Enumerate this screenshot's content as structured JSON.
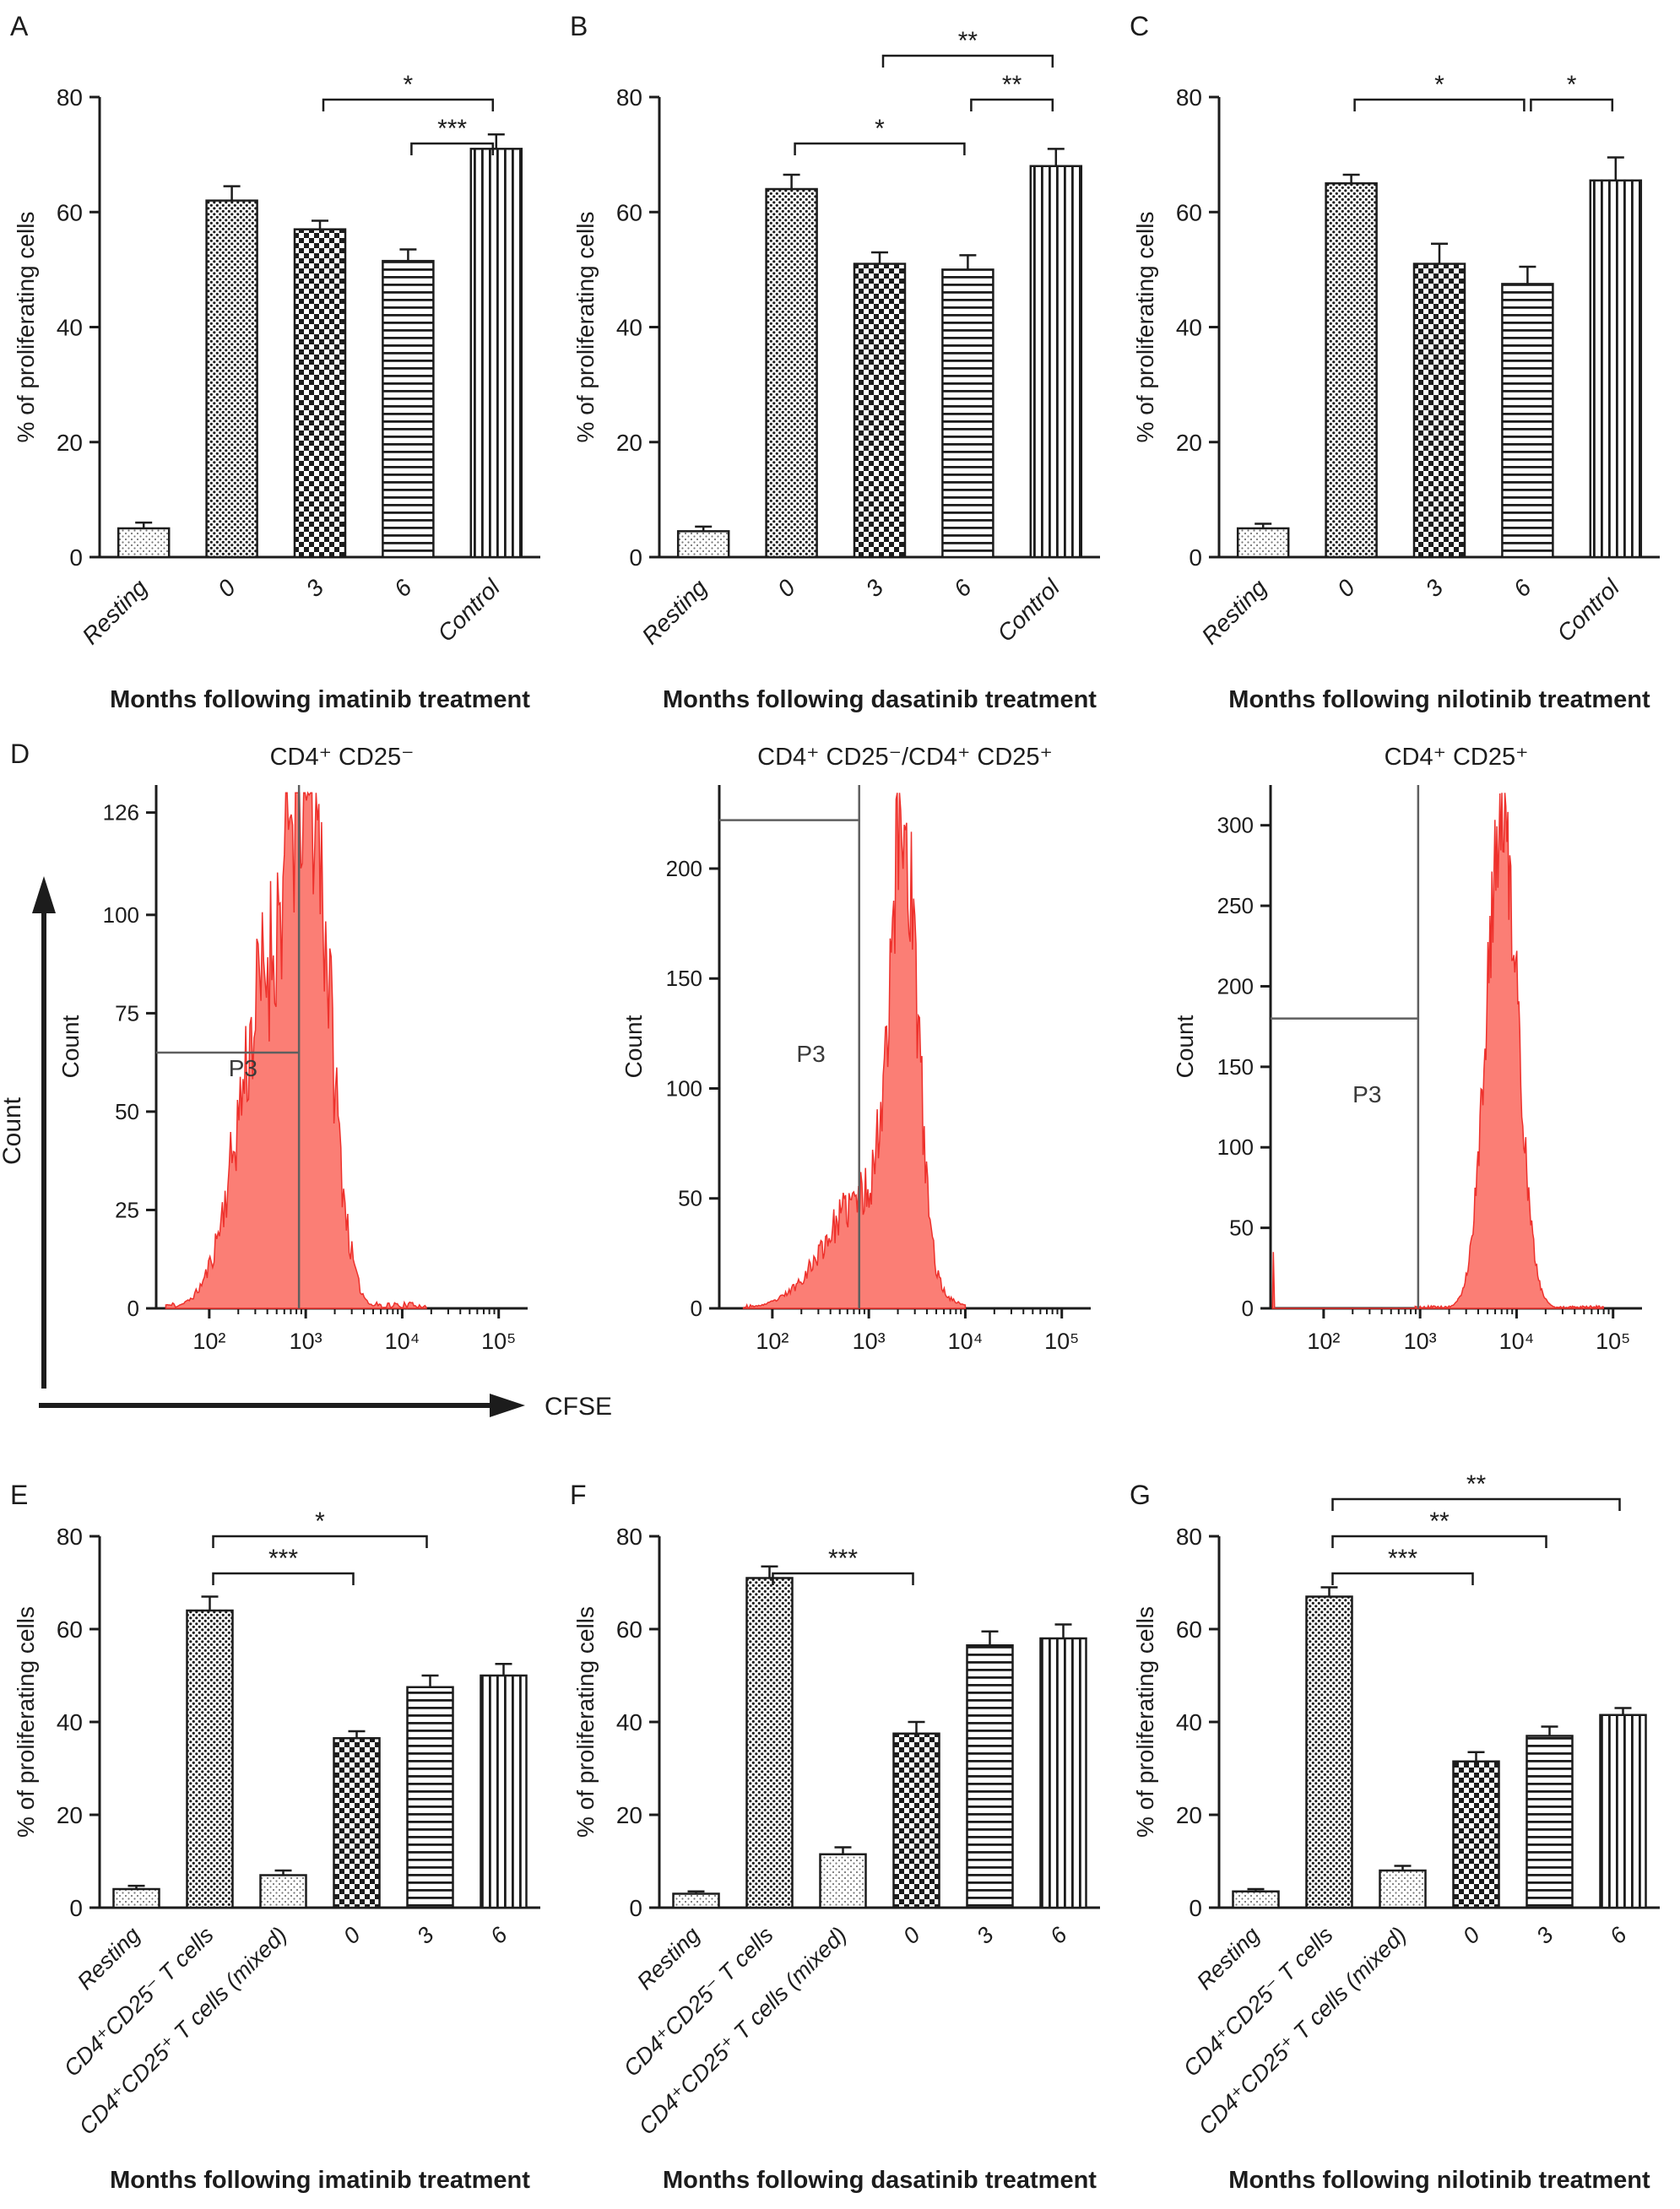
{
  "style": {
    "background": "#ffffff",
    "ink": "#1c1c1c",
    "hist_fill": "#fb7e75",
    "hist_stroke": "#ee312c",
    "gate_color": "#5f5f5f",
    "stipple_dot": "#777777"
  },
  "chart_data": {
    "row1_bar_charts": [
      {
        "type": "bar",
        "letter": "A",
        "ylabel": "% of proliferating cells",
        "xlabel": "Months following imatinib treatment",
        "ylim": [
          0,
          80
        ],
        "yticks": [
          0,
          20,
          40,
          60,
          80
        ],
        "categories": [
          "Resting",
          "0",
          "3",
          "6",
          "Control"
        ],
        "values": [
          5,
          62,
          57,
          51.5,
          71
        ],
        "errors": [
          1,
          2.5,
          1.5,
          2,
          2.5
        ],
        "patterns": [
          "stipple",
          "dots",
          "checker",
          "hlines",
          "vlines"
        ],
        "significance": [
          {
            "from": 3,
            "to": 4,
            "label": "***",
            "level": 1
          },
          {
            "from": 2,
            "to": 4,
            "label": "*",
            "level": 2
          }
        ]
      },
      {
        "type": "bar",
        "letter": "B",
        "ylabel": "% of proliferating cells",
        "xlabel": "Months following dasatinib treatment",
        "ylim": [
          0,
          80
        ],
        "yticks": [
          0,
          20,
          40,
          60,
          80
        ],
        "categories": [
          "Resting",
          "0",
          "3",
          "6",
          "Control"
        ],
        "values": [
          4.5,
          64,
          51,
          50,
          68
        ],
        "errors": [
          0.8,
          2.5,
          2,
          2.5,
          3
        ],
        "patterns": [
          "stipple",
          "dots",
          "checker",
          "hlines",
          "vlines"
        ],
        "significance": [
          {
            "from": 1,
            "to": 3,
            "label": "*",
            "level": 1
          },
          {
            "from": 3,
            "to": 4,
            "label": "**",
            "level": 2
          },
          {
            "from": 2,
            "to": 4,
            "label": "**",
            "level": 3
          }
        ]
      },
      {
        "type": "bar",
        "letter": "C",
        "ylabel": "% of proliferating cells",
        "xlabel": "Months following nilotinib treatment",
        "ylim": [
          0,
          80
        ],
        "yticks": [
          0,
          20,
          40,
          60,
          80
        ],
        "categories": [
          "Resting",
          "0",
          "3",
          "6",
          "Control"
        ],
        "values": [
          5,
          65,
          51,
          47.5,
          65.5
        ],
        "errors": [
          0.8,
          1.5,
          3.5,
          3,
          4
        ],
        "patterns": [
          "stipple",
          "dots",
          "checker",
          "hlines",
          "vlines"
        ],
        "significance": [
          {
            "from": 1,
            "to": 3,
            "label": "*",
            "level": 2
          },
          {
            "from": 3,
            "to": 4,
            "label": "*",
            "level": 2
          }
        ]
      }
    ],
    "flow_histograms": {
      "letter": "D",
      "arrow_y_label": "Count",
      "arrow_x_label": "CFSE",
      "panels": [
        {
          "type": "area",
          "title": "CD4⁺ CD25⁻",
          "ylabel": "Count",
          "ymax": 133,
          "yticks": [
            0,
            25,
            50,
            75,
            100,
            126
          ],
          "xrange": [
            1.45,
            5.3
          ],
          "xticks": [
            2,
            3,
            4,
            5
          ],
          "xtick_labels": [
            "10²",
            "10³",
            "10⁴",
            "10⁵"
          ],
          "hist": {
            "range": [
              1.55,
              4.25
            ],
            "components": [
              [
                112,
                3.06,
                0.2
              ],
              [
                80,
                2.6,
                0.3
              ]
            ],
            "noise": 0.5,
            "seed": 11
          },
          "gate": {
            "label": "P3",
            "vline": 2.93,
            "hline": 65,
            "label_x": 2.2,
            "label_y": 59
          }
        },
        {
          "type": "area",
          "title": "CD4⁺ CD25⁻/CD4⁺ CD25⁺",
          "ylabel": "Count",
          "ymax": 238,
          "yticks": [
            0,
            50,
            100,
            150,
            200
          ],
          "xrange": [
            1.45,
            5.3
          ],
          "xticks": [
            2,
            3,
            4,
            5
          ],
          "xtick_labels": [
            "10²",
            "10³",
            "10⁴",
            "10⁵"
          ],
          "hist": {
            "range": [
              1.7,
              4.0
            ],
            "components": [
              [
                195,
                3.36,
                0.14
              ],
              [
                50,
                2.95,
                0.4
              ]
            ],
            "noise": 0.45,
            "seed": 23
          },
          "gate": {
            "label": "P3",
            "vline": 2.9,
            "hline": 222,
            "label_x": 2.25,
            "label_y": 112
          }
        },
        {
          "type": "area",
          "title": "CD4⁺ CD25⁺",
          "ylabel": "Count",
          "ymax": 325,
          "yticks": [
            0,
            50,
            100,
            150,
            200,
            250,
            300
          ],
          "xrange": [
            1.45,
            5.3
          ],
          "xticks": [
            2,
            3,
            4,
            5
          ],
          "xtick_labels": [
            "10²",
            "10³",
            "10⁴",
            "10⁵"
          ],
          "hist": {
            "range": [
              2.95,
              4.9
            ],
            "components": [
              [
                308,
                3.85,
                0.16
              ]
            ],
            "noise": 0.3,
            "seed": 5,
            "spike": [
              1.47,
              35
            ]
          },
          "gate": {
            "label": "P3",
            "vline": 2.98,
            "hline": 180,
            "label_x": 2.3,
            "label_y": 128
          }
        }
      ]
    },
    "row3_bar_charts": [
      {
        "type": "bar",
        "letter": "E",
        "ylabel": "% of proliferating cells",
        "xlabel": "Months following imatinib treatment",
        "ylim": [
          0,
          80
        ],
        "yticks": [
          0,
          20,
          40,
          60,
          80
        ],
        "categories": [
          "Resting",
          "CD4⁺CD25⁻ T cells",
          "CD4⁺CD25⁺ T cells (mixed)",
          "0",
          "3",
          "6"
        ],
        "values": [
          4,
          64,
          7,
          36.5,
          47.5,
          50
        ],
        "errors": [
          0.7,
          3,
          1,
          1.5,
          2.5,
          2.5
        ],
        "patterns": [
          "stipple",
          "dots",
          "stipple",
          "checker",
          "hlines",
          "vlines"
        ],
        "significance": [
          {
            "from": 1,
            "to": 3,
            "label": "***",
            "level": 1
          },
          {
            "from": 1,
            "to": 4,
            "label": "*",
            "level": 2
          }
        ]
      },
      {
        "type": "bar",
        "letter": "F",
        "ylabel": "% of proliferating cells",
        "xlabel": "Months following dasatinib treatment",
        "ylim": [
          0,
          80
        ],
        "yticks": [
          0,
          20,
          40,
          60,
          80
        ],
        "categories": [
          "Resting",
          "CD4⁺CD25⁻ T cells",
          "CD4⁺CD25⁺ T cells (mixed)",
          "0",
          "3",
          "6"
        ],
        "values": [
          3,
          71,
          11.5,
          37.5,
          56.5,
          58
        ],
        "errors": [
          0.5,
          2.5,
          1.5,
          2.5,
          3,
          3
        ],
        "patterns": [
          "stipple",
          "dots",
          "stipple",
          "checker",
          "hlines",
          "vlines"
        ],
        "significance": [
          {
            "from": 1,
            "to": 3,
            "label": "***",
            "level": 1
          }
        ]
      },
      {
        "type": "bar",
        "letter": "G",
        "ylabel": "% of proliferating cells",
        "xlabel": "Months following nilotinib treatment",
        "ylim": [
          0,
          80
        ],
        "yticks": [
          0,
          20,
          40,
          60,
          80
        ],
        "categories": [
          "Resting",
          "CD4⁺CD25⁻ T cells",
          "CD4⁺CD25⁺ T cells (mixed)",
          "0",
          "3",
          "6"
        ],
        "values": [
          3.5,
          67,
          8,
          31.5,
          37,
          41.5
        ],
        "errors": [
          0.5,
          2,
          1,
          2,
          2,
          1.5
        ],
        "patterns": [
          "stipple",
          "dots",
          "stipple",
          "checker",
          "hlines",
          "vlines"
        ],
        "significance": [
          {
            "from": 1,
            "to": 3,
            "label": "***",
            "level": 1
          },
          {
            "from": 1,
            "to": 4,
            "label": "**",
            "level": 2
          },
          {
            "from": 1,
            "to": 5,
            "label": "**",
            "level": 3
          }
        ]
      }
    ]
  }
}
